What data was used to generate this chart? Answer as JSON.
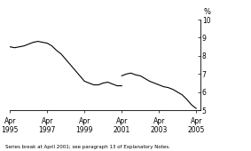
{
  "title": "",
  "ylabel": "%",
  "xlim_num": [
    1995.25,
    2005.5
  ],
  "ylim": [
    5,
    10
  ],
  "yticks": [
    5,
    6,
    7,
    8,
    9,
    10
  ],
  "xtick_positions": [
    1995.25,
    1997.25,
    1999.25,
    2001.25,
    2003.25,
    2005.25
  ],
  "xtick_labels": [
    "Apr\n1995",
    "Apr\n1997",
    "Apr\n1999",
    "Apr\n2001",
    "Apr\n2003",
    "Apr\n2005"
  ],
  "footnote": "Series break at April 2001; see paragraph 13 of Explanatory Notes.",
  "line_color": "#000000",
  "background_color": "#ffffff",
  "series1_x": [
    1995.25,
    1995.5,
    1995.75,
    1996.0,
    1996.25,
    1996.5,
    1996.75,
    1997.0,
    1997.25,
    1997.5,
    1997.75,
    1998.0,
    1998.25,
    1998.5,
    1998.75,
    1999.0,
    1999.25,
    1999.5,
    1999.75,
    2000.0,
    2000.25,
    2000.5,
    2000.75,
    2001.0,
    2001.25
  ],
  "series1_y": [
    8.5,
    8.45,
    8.5,
    8.55,
    8.65,
    8.75,
    8.8,
    8.75,
    8.7,
    8.55,
    8.3,
    8.1,
    7.8,
    7.5,
    7.2,
    6.9,
    6.6,
    6.5,
    6.4,
    6.4,
    6.5,
    6.55,
    6.45,
    6.35,
    6.35
  ],
  "series2_x": [
    2001.25,
    2001.5,
    2001.75,
    2002.0,
    2002.25,
    2002.5,
    2002.75,
    2003.0,
    2003.25,
    2003.5,
    2003.75,
    2004.0,
    2004.25,
    2004.5,
    2004.75,
    2005.0,
    2005.25
  ],
  "series2_y": [
    6.9,
    7.0,
    7.05,
    6.95,
    6.9,
    6.75,
    6.6,
    6.5,
    6.4,
    6.3,
    6.25,
    6.15,
    6.0,
    5.85,
    5.6,
    5.3,
    5.1
  ]
}
